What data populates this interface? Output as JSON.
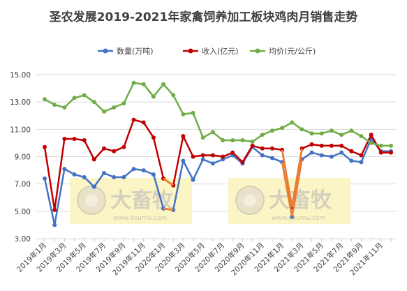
{
  "chart_data": {
    "type": "line",
    "title": "圣农发展2019-2021年家禽饲养加工板块鸡肉月销售走势",
    "xlabel": "",
    "ylabel": "",
    "ylim": [
      3,
      15
    ],
    "yticks": [
      "3.00",
      "5.00",
      "7.00",
      "9.00",
      "11.00",
      "13.00",
      "15.00"
    ],
    "grid": true,
    "legend_position": "top",
    "x": [
      "2019年1月",
      "2019年2月",
      "2019年3月",
      "2019年4月",
      "2019年5月",
      "2019年6月",
      "2019年7月",
      "2019年8月",
      "2019年9月",
      "2019年10月",
      "2019年11月",
      "2019年12月",
      "2020年1月",
      "2020年2月",
      "2020年3月",
      "2020年4月",
      "2020年5月",
      "2020年6月",
      "2020年7月",
      "2020年8月",
      "2020年9月",
      "2020年10月",
      "2020年11月",
      "2020年12月",
      "2021年1月",
      "2021年2月",
      "2021年3月",
      "2021年4月",
      "2021年5月",
      "2021年6月",
      "2021年7月",
      "2021年8月",
      "2021年9月",
      "2021年10月",
      "2021年11月",
      "2021年12月"
    ],
    "xtick_labels": [
      "2019年1月",
      "2019年3月",
      "2019年5月",
      "2019年7月",
      "2019年9月",
      "2019年11月",
      "2020年1月",
      "2020年3月",
      "2020年5月",
      "2020年7月",
      "2020年9月",
      "2020年11月",
      "2021年1月",
      "2021年3月",
      "2021年5月",
      "2021年7月",
      "2021年9月",
      "2021年11月"
    ],
    "series": [
      {
        "name": "数量(万吨)",
        "color": "#4472C4",
        "values": [
          7.4,
          4.0,
          8.1,
          7.7,
          7.5,
          6.8,
          7.8,
          7.5,
          7.5,
          8.1,
          8.0,
          7.7,
          5.2,
          5.1,
          8.7,
          7.3,
          8.8,
          8.5,
          8.8,
          9.1,
          8.5,
          9.7,
          9.1,
          8.9,
          8.6,
          4.6,
          8.8,
          9.3,
          9.1,
          9.0,
          9.3,
          8.7,
          8.6,
          10.3,
          9.4,
          9.4
        ]
      },
      {
        "name": "收入(亿元)",
        "color": "#C00000",
        "values": [
          9.7,
          5.1,
          10.3,
          10.3,
          10.2,
          8.8,
          9.6,
          9.4,
          9.7,
          11.7,
          11.5,
          10.4,
          7.4,
          6.9,
          10.5,
          9.0,
          9.1,
          9.1,
          9.0,
          9.3,
          8.6,
          9.8,
          9.6,
          9.6,
          9.5,
          5.3,
          9.6,
          9.9,
          9.8,
          9.8,
          9.8,
          9.4,
          9.1,
          10.6,
          9.3,
          9.3
        ]
      },
      {
        "name": "均价(元/公斤)",
        "color": "#70AD47",
        "values": [
          13.2,
          12.8,
          12.6,
          13.3,
          13.5,
          13.0,
          12.3,
          12.6,
          12.9,
          14.4,
          14.3,
          13.4,
          14.3,
          13.5,
          12.1,
          12.2,
          10.4,
          10.8,
          10.2,
          10.2,
          10.2,
          10.1,
          10.6,
          10.9,
          11.1,
          11.5,
          11.0,
          10.7,
          10.7,
          10.9,
          10.6,
          10.9,
          10.5,
          10.0,
          9.8,
          9.8
        ]
      }
    ],
    "highlight_color": "#ED7D31"
  },
  "watermark": {
    "brand": "大畜牧",
    "url": "www.dxumu.com",
    "bg_color": "#FBF4C4"
  }
}
